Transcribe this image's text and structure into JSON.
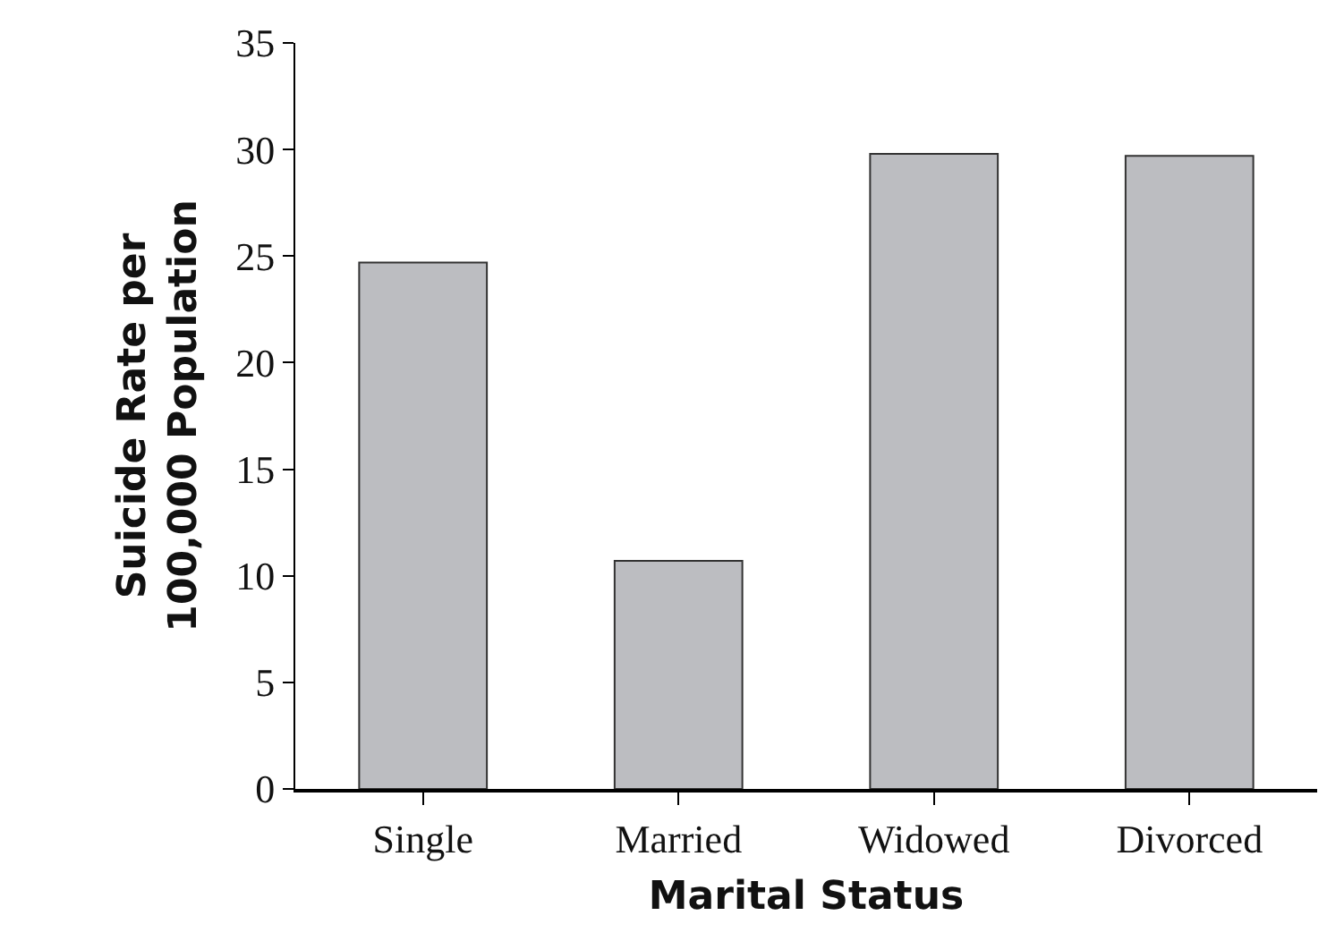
{
  "chart_data": {
    "type": "bar",
    "xlabel": "Marital Status",
    "ylabel": "Suicide Rate per\n100,000 Population",
    "categories": [
      "Single",
      "Married",
      "Widowed",
      "Divorced"
    ],
    "values": [
      24.7,
      10.7,
      29.8,
      29.7
    ],
    "color": "#bcbdc1",
    "ylim": [
      0,
      35
    ],
    "yticks": [
      0,
      5,
      10,
      15,
      20,
      25,
      30,
      35
    ]
  }
}
